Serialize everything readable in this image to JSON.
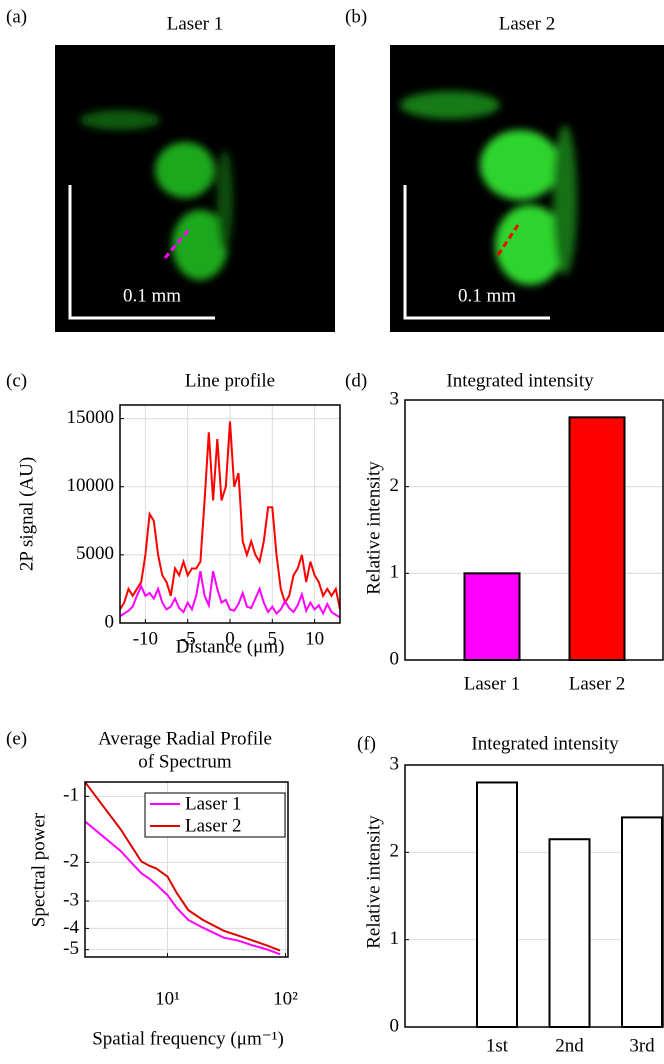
{
  "images": [
    {
      "label": "(a)",
      "title": "Laser 1",
      "scale_bar": "0.1 mm"
    },
    {
      "label": "(b)",
      "title": "Laser 2",
      "scale_bar": "0.1 mm"
    }
  ],
  "chart_data": [
    {
      "type": "line",
      "panel": "(c)",
      "title": "Line profile",
      "xlabel": "Distance (μm)",
      "ylabel": "2P signal (AU)",
      "x": [
        -13,
        -12.5,
        -12,
        -11.5,
        -11,
        -10.5,
        -10,
        -9.5,
        -9,
        -8.5,
        -8,
        -7.5,
        -7,
        -6.5,
        -6,
        -5.5,
        -5,
        -4.5,
        -4,
        -3.5,
        -3,
        -2.5,
        -2,
        -1.5,
        -1,
        -0.5,
        0,
        0.5,
        1,
        1.5,
        2,
        2.5,
        3,
        3.5,
        4,
        4.5,
        5,
        5.5,
        6,
        6.5,
        7,
        7.5,
        8,
        8.5,
        9,
        9.5,
        10,
        10.5,
        11,
        11.5,
        12,
        12.5,
        13
      ],
      "series": [
        {
          "color": "#ff0000",
          "values": [
            1000,
            1500,
            2500,
            2000,
            2500,
            3000,
            5000,
            8000,
            7500,
            5000,
            3500,
            3000,
            2000,
            4000,
            3500,
            4500,
            3500,
            4000,
            4000,
            4500,
            9000,
            14000,
            9000,
            13500,
            9000,
            10000,
            14800,
            10000,
            11000,
            6000,
            5000,
            6000,
            5000,
            4500,
            6000,
            8500,
            8500,
            5000,
            2500,
            1500,
            2000,
            3500,
            4000,
            5000,
            3000,
            4500,
            3500,
            3000,
            2000,
            2500,
            2000,
            2500,
            1000
          ]
        },
        {
          "color": "#ff00ff",
          "values": [
            500,
            700,
            900,
            1200,
            2000,
            2700,
            2000,
            2200,
            1800,
            2500,
            1500,
            1000,
            1200,
            1800,
            1100,
            800,
            1500,
            1000,
            2000,
            3800,
            2000,
            1300,
            3800,
            2500,
            1500,
            1700,
            1000,
            900,
            1400,
            2200,
            1200,
            1100,
            1800,
            2500,
            1500,
            800,
            1200,
            700,
            1000,
            1600,
            1100,
            800,
            1300,
            2100,
            900,
            1500,
            1000,
            1300,
            700,
            1400,
            800,
            600,
            400
          ]
        }
      ],
      "xlim": [
        -13,
        13
      ],
      "xticks": [
        -10,
        -5,
        0,
        5,
        10
      ],
      "ylim": [
        0,
        16000
      ],
      "yticks": [
        0,
        5000,
        10000,
        15000
      ],
      "grid": true
    },
    {
      "type": "bar",
      "panel": "(d)",
      "title": "Integrated intensity",
      "ylabel": "Relative intensity",
      "categories": [
        "Laser 1",
        "Laser 2"
      ],
      "values": [
        1,
        2.8
      ],
      "colors": [
        "#ff00ff",
        "#ff0000"
      ],
      "ylim": [
        0,
        3
      ],
      "yticks": [
        0,
        1,
        2,
        3
      ],
      "grid": true
    },
    {
      "type": "line",
      "panel": "(e)",
      "title": [
        "Average Radial Profile",
        "of Spectrum"
      ],
      "xlabel": "Spatial frequency (μm⁻¹)",
      "ylabel": "Spectral power",
      "xscale": "log",
      "yscale": "log",
      "x": [
        2,
        3,
        4,
        5,
        6,
        7,
        8,
        10,
        12,
        15,
        20,
        30,
        40,
        50,
        70,
        90
      ],
      "series": [
        {
          "name": "Laser 1",
          "color": "#ff00ff",
          "values": [
            -1.3,
            -1.56,
            -1.77,
            -2.02,
            -2.24,
            -2.37,
            -2.52,
            -2.82,
            -3.23,
            -3.66,
            -3.97,
            -4.41,
            -4.55,
            -4.74,
            -4.99,
            -5.25
          ]
        },
        {
          "name": "Laser 2",
          "color": "#e00000",
          "values": [
            -0.86,
            -1.15,
            -1.41,
            -1.7,
            -1.98,
            -2.07,
            -2.13,
            -2.32,
            -2.76,
            -3.3,
            -3.66,
            -4.1,
            -4.32,
            -4.5,
            -4.79,
            -5.05
          ]
        }
      ],
      "xlim": [
        2,
        105
      ],
      "xticks": [
        {
          "value": 10,
          "label": "10¹"
        },
        {
          "value": 100,
          "label": "10²"
        }
      ],
      "ylim": [
        -5.4,
        -0.86
      ],
      "yticks": [
        -1,
        -2,
        -3,
        -4,
        -5
      ],
      "grid": true,
      "legend": "top-right"
    },
    {
      "type": "bar",
      "panel": "(f)",
      "title": "Integrated intensity",
      "ylabel": "Relative intensity",
      "categories": [
        "1st",
        "2nd",
        "3rd"
      ],
      "values": [
        2.8,
        2.15,
        2.4
      ],
      "color": "#ffffff",
      "ylim": [
        0,
        3
      ],
      "yticks": [
        0,
        1,
        2,
        3
      ],
      "grid": true
    }
  ]
}
